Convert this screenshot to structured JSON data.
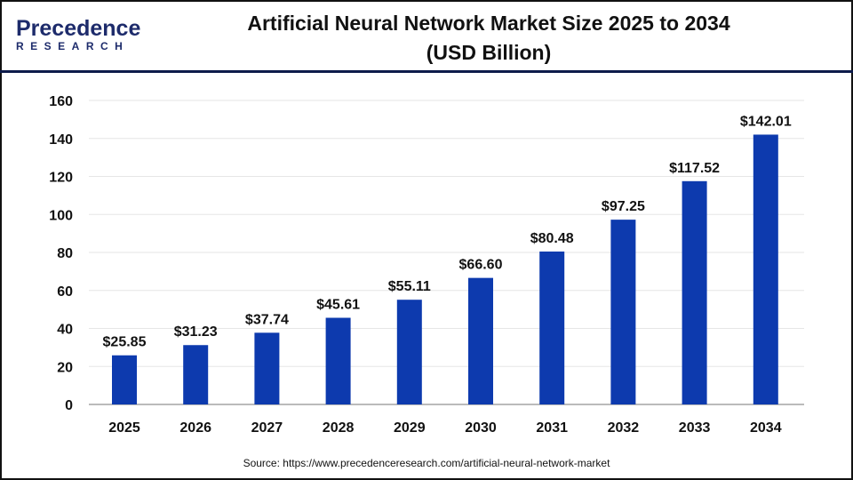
{
  "logo": {
    "text_top": "Precedence",
    "text_bottom": "RESEARCH"
  },
  "title_line1": "Artificial Neural Network Market Size 2025 to 2034",
  "title_line2": "(USD Billion)",
  "source": "Source: https://www.precedenceresearch.com/artificial-neural-network-market",
  "colors": {
    "bar": "#0d3aae",
    "header_line": "#0d1b4a"
  },
  "chart_data": {
    "type": "bar",
    "categories": [
      "2025",
      "2026",
      "2027",
      "2028",
      "2029",
      "2030",
      "2031",
      "2032",
      "2033",
      "2034"
    ],
    "values": [
      25.85,
      31.23,
      37.74,
      45.61,
      55.11,
      66.6,
      80.48,
      97.25,
      117.52,
      142.01
    ],
    "data_labels": [
      "$25.85",
      "$31.23",
      "$37.74",
      "$45.61",
      "$55.11",
      "$66.60",
      "$80.48",
      "$97.25",
      "$117.52",
      "$142.01"
    ],
    "yticks": [
      0,
      20,
      40,
      60,
      80,
      100,
      120,
      140,
      160
    ],
    "ylim": [
      0,
      160
    ],
    "grid": true,
    "title": "Artificial Neural Network Market Size 2025 to 2034 (USD Billion)",
    "xlabel": "",
    "ylabel": ""
  }
}
